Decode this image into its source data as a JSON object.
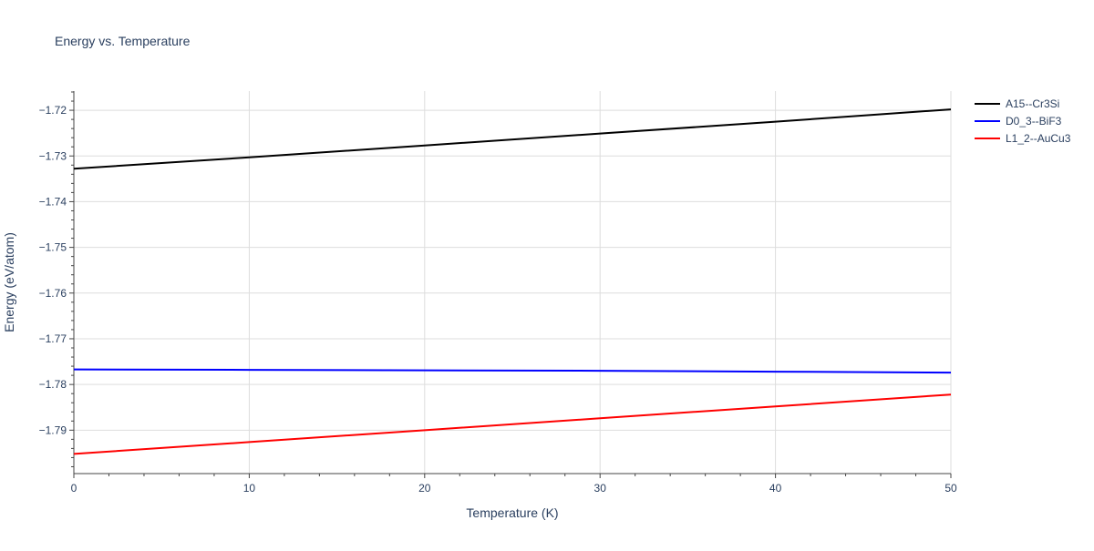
{
  "chart_data": {
    "type": "line",
    "title": "Energy vs. Temperature",
    "xlabel": "Temperature (K)",
    "ylabel": "Energy (eV/atom)",
    "xlim": [
      0,
      50
    ],
    "ylim": [
      -1.7995,
      -1.7158
    ],
    "xticks": [
      0,
      10,
      20,
      30,
      40,
      50
    ],
    "xtick_labels": [
      "0",
      "10",
      "20",
      "30",
      "40",
      "50"
    ],
    "yticks": [
      -1.72,
      -1.73,
      -1.74,
      -1.75,
      -1.76,
      -1.77,
      -1.78,
      -1.79
    ],
    "ytick_labels": [
      "−1.72",
      "−1.73",
      "−1.74",
      "−1.75",
      "−1.76",
      "−1.77",
      "−1.78",
      "−1.79"
    ],
    "grid": true,
    "legend_position": "top-right outside",
    "series": [
      {
        "name": "A15--Cr3Si",
        "color": "#000000",
        "x": [
          0,
          10,
          20,
          30,
          40,
          50
        ],
        "y": [
          -1.7328,
          -1.7303,
          -1.7277,
          -1.7251,
          -1.7225,
          -1.7198
        ]
      },
      {
        "name": "D0_3--BiF3",
        "color": "#0000ff",
        "x": [
          0,
          10,
          20,
          30,
          40,
          50
        ],
        "y": [
          -1.7767,
          -1.7768,
          -1.7769,
          -1.777,
          -1.7772,
          -1.7774
        ]
      },
      {
        "name": "L1_2--AuCu3",
        "color": "#ff0000",
        "x": [
          0,
          10,
          20,
          30,
          40,
          50
        ],
        "y": [
          -1.7952,
          -1.7926,
          -1.79,
          -1.7874,
          -1.7848,
          -1.7822
        ]
      }
    ]
  }
}
